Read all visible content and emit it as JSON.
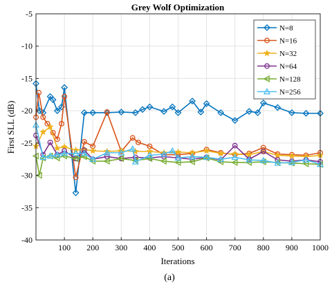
{
  "caption": "(a)",
  "chart_data": {
    "type": "line",
    "title": "Grey Wolf Optimization",
    "xlabel": "Iterations",
    "ylabel": "First SLL (dB)",
    "xlim": [
      0,
      1000
    ],
    "ylim": [
      -40,
      -5
    ],
    "xticks": [
      100,
      200,
      300,
      400,
      500,
      600,
      700,
      800,
      900,
      1000
    ],
    "yticks": [
      -5,
      -10,
      -15,
      -20,
      -25,
      -30,
      -35,
      -40
    ],
    "grid": true,
    "legend_position": "top-right",
    "series": [
      {
        "name": "N=8",
        "color": "#0072BD",
        "marker": "diamond",
        "x": [
          0,
          12,
          25,
          50,
          60,
          75,
          90,
          100,
          140,
          170,
          200,
          250,
          300,
          350,
          375,
          400,
          450,
          480,
          500,
          550,
          580,
          600,
          650,
          700,
          750,
          780,
          800,
          850,
          900,
          950,
          1000
        ],
        "y": [
          -15.8,
          -20.0,
          -20.3,
          -17.8,
          -18.3,
          -20.0,
          -19.4,
          -16.4,
          -32.7,
          -20.3,
          -20.3,
          -20.3,
          -20.2,
          -20.3,
          -19.8,
          -19.4,
          -20.1,
          -19.4,
          -20.3,
          -18.5,
          -20.2,
          -18.9,
          -20.3,
          -21.5,
          -20.1,
          -20.3,
          -18.8,
          -19.5,
          -20.3,
          -20.4,
          -20.4
        ]
      },
      {
        "name": "N=16",
        "color": "#D95319",
        "marker": "circle",
        "x": [
          0,
          10,
          25,
          40,
          60,
          75,
          90,
          100,
          140,
          170,
          200,
          250,
          300,
          340,
          360,
          400,
          450,
          500,
          550,
          600,
          650,
          700,
          750,
          800,
          850,
          900,
          950,
          1000
        ],
        "y": [
          -21.0,
          -17.2,
          -21.0,
          -22.0,
          -23.4,
          -24.4,
          -22.0,
          -17.8,
          -30.3,
          -24.8,
          -25.5,
          -20.2,
          -26.3,
          -24.2,
          -24.9,
          -25.5,
          -26.8,
          -26.8,
          -26.6,
          -26.0,
          -26.5,
          -26.8,
          -26.6,
          -25.7,
          -26.7,
          -26.8,
          -26.9,
          -26.5
        ]
      },
      {
        "name": "N=32",
        "color": "#EDB120",
        "marker": "star",
        "x": [
          0,
          25,
          50,
          75,
          100,
          140,
          170,
          200,
          250,
          300,
          350,
          400,
          450,
          500,
          550,
          600,
          650,
          700,
          750,
          800,
          850,
          900,
          950,
          1000
        ],
        "y": [
          -25.5,
          -23.3,
          -22.5,
          -25.8,
          -25.6,
          -26.1,
          -26.0,
          -26.2,
          -26.3,
          -26.2,
          -26.3,
          -26.3,
          -26.5,
          -26.4,
          -26.5,
          -26.2,
          -26.6,
          -26.7,
          -26.8,
          -26.3,
          -26.9,
          -27.0,
          -27.1,
          -26.9
        ]
      },
      {
        "name": "N=64",
        "color": "#7E2F8E",
        "marker": "circle",
        "x": [
          0,
          25,
          50,
          75,
          100,
          140,
          170,
          200,
          250,
          300,
          350,
          400,
          450,
          500,
          550,
          600,
          650,
          700,
          750,
          800,
          850,
          900,
          950,
          1000
        ],
        "y": [
          -23.8,
          -26.8,
          -24.9,
          -26.8,
          -26.2,
          -27.4,
          -26.1,
          -27.5,
          -27.1,
          -27.4,
          -27.2,
          -27.3,
          -27.1,
          -27.3,
          -27.5,
          -27.2,
          -27.6,
          -25.4,
          -27.5,
          -26.3,
          -27.6,
          -27.8,
          -27.6,
          -27.9
        ]
      },
      {
        "name": "N=128",
        "color": "#77AC30",
        "marker": "triangle-left",
        "x": [
          0,
          12,
          25,
          50,
          75,
          100,
          140,
          170,
          200,
          250,
          300,
          350,
          400,
          450,
          500,
          550,
          600,
          650,
          700,
          750,
          800,
          850,
          900,
          950,
          1000
        ],
        "y": [
          -27.0,
          -30.0,
          -27.3,
          -27.0,
          -27.3,
          -27.0,
          -27.4,
          -27.1,
          -27.8,
          -27.8,
          -27.4,
          -27.7,
          -27.4,
          -27.8,
          -28.0,
          -27.9,
          -27.3,
          -27.9,
          -28.0,
          -28.0,
          -27.9,
          -28.0,
          -28.1,
          -28.2,
          -28.3
        ]
      },
      {
        "name": "N=256",
        "color": "#4DBEEE",
        "marker": "triangle-up",
        "x": [
          0,
          25,
          50,
          75,
          100,
          140,
          170,
          200,
          250,
          300,
          340,
          350,
          400,
          450,
          480,
          500,
          550,
          600,
          650,
          700,
          750,
          800,
          850,
          900,
          950,
          1000
        ],
        "y": [
          -22.2,
          -27.2,
          -27.0,
          -26.8,
          -26.6,
          -26.6,
          -26.6,
          -27.5,
          -26.5,
          -26.5,
          -25.9,
          -27.9,
          -26.9,
          -26.7,
          -26.2,
          -27.3,
          -27.1,
          -27.2,
          -27.5,
          -27.2,
          -27.6,
          -27.7,
          -28.1,
          -28.0,
          -27.6,
          -28.3
        ]
      }
    ]
  }
}
